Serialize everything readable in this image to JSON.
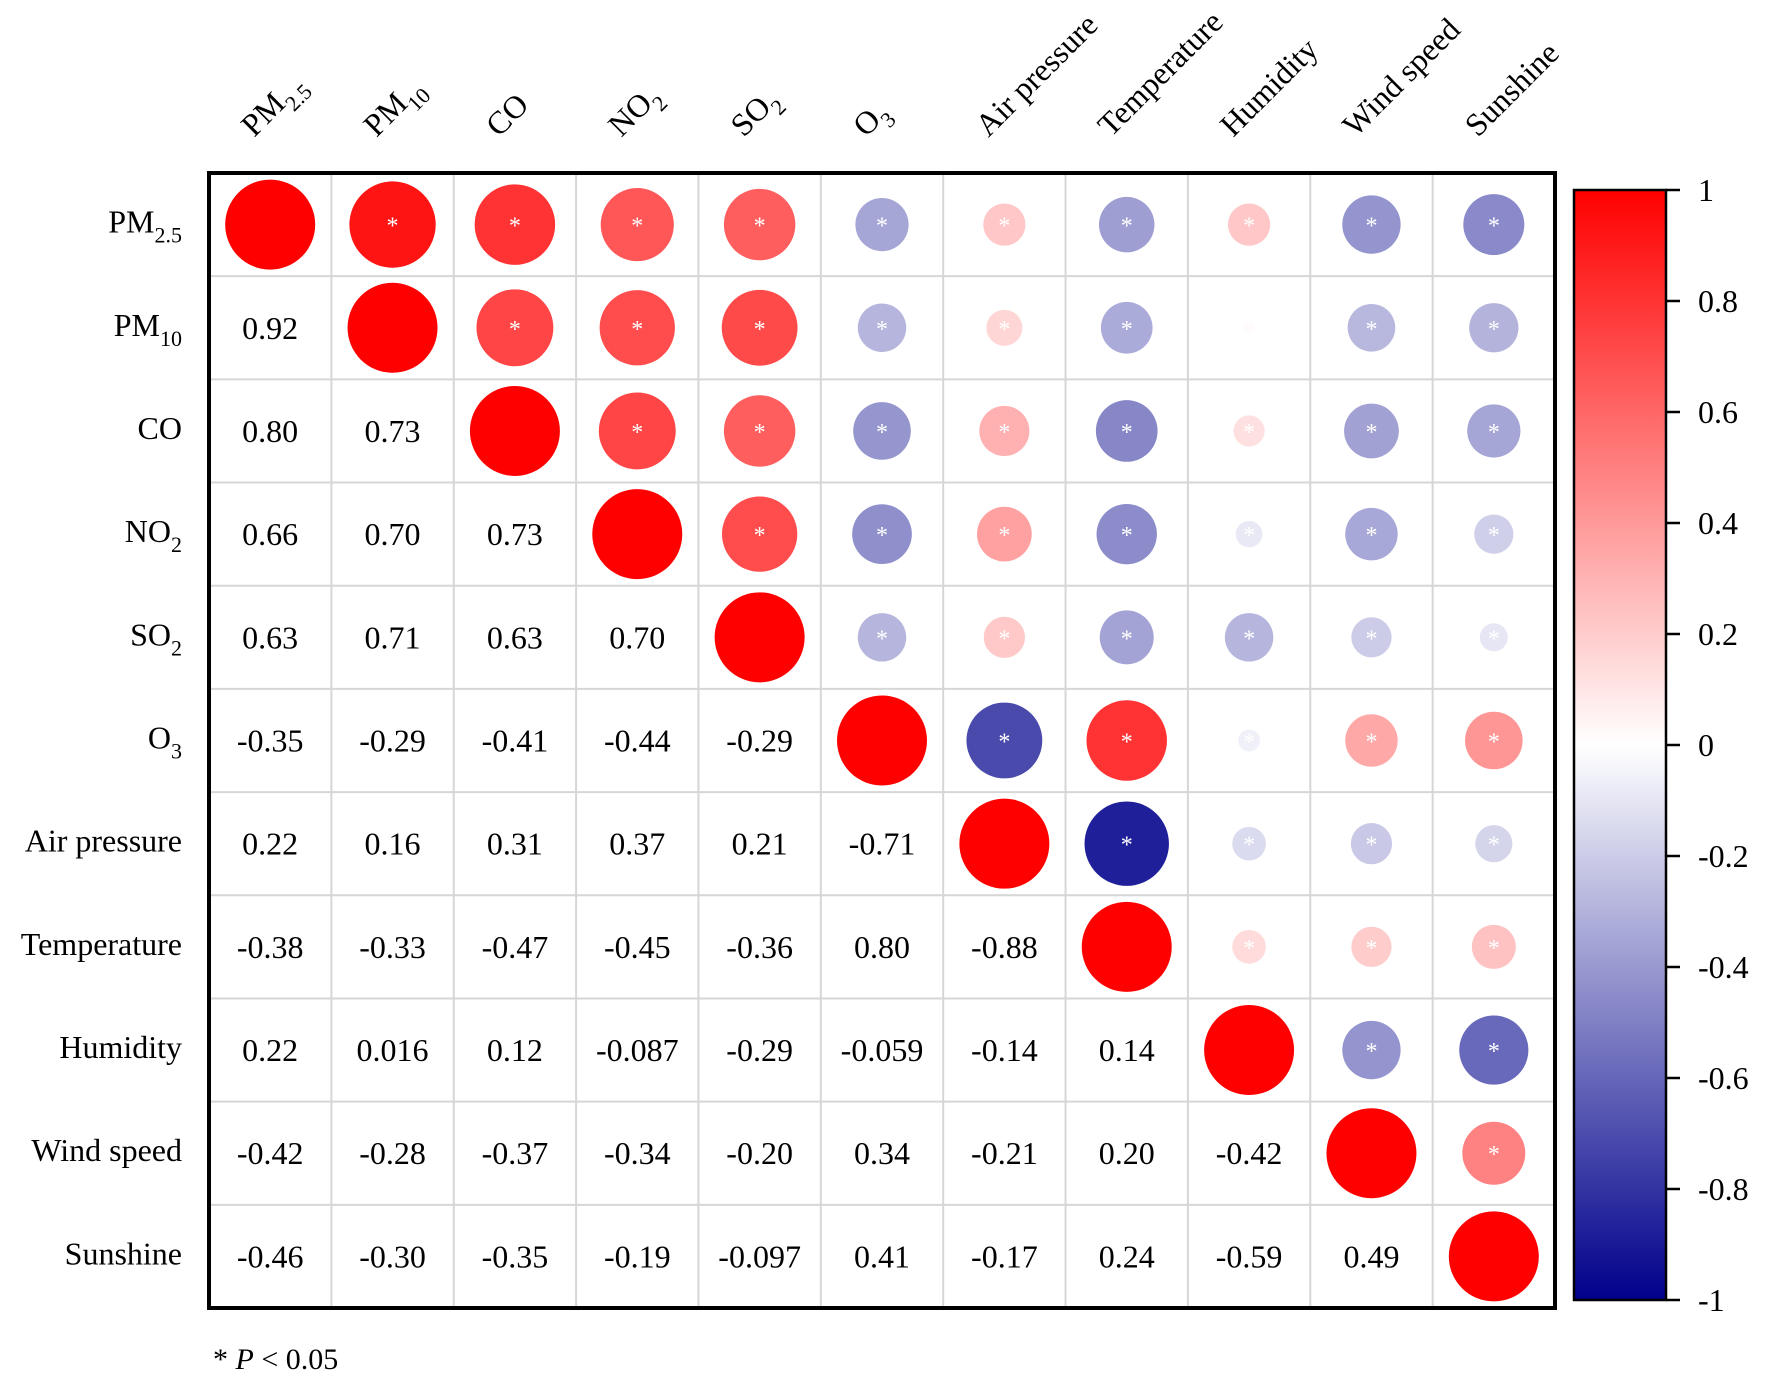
{
  "chart_data": {
    "type": "heatmap",
    "title": "",
    "variables": [
      {
        "label": "PM",
        "sub": "2.5"
      },
      {
        "label": "PM",
        "sub": "10"
      },
      {
        "label": "CO",
        "sub": ""
      },
      {
        "label": "NO",
        "sub": "2"
      },
      {
        "label": "SO",
        "sub": "2"
      },
      {
        "label": "O",
        "sub": "3"
      },
      {
        "label": "Air pressure",
        "sub": ""
      },
      {
        "label": "Temperature",
        "sub": ""
      },
      {
        "label": "Humidity",
        "sub": ""
      },
      {
        "label": "Wind speed",
        "sub": ""
      },
      {
        "label": "Sunshine",
        "sub": ""
      }
    ],
    "matrix": [
      [
        1,
        0.92,
        0.8,
        0.66,
        0.63,
        -0.35,
        0.22,
        -0.38,
        0.22,
        -0.42,
        -0.46
      ],
      [
        0.92,
        1,
        0.73,
        0.7,
        0.71,
        -0.29,
        0.16,
        -0.33,
        0.016,
        -0.28,
        -0.3
      ],
      [
        0.8,
        0.73,
        1,
        0.73,
        0.63,
        -0.41,
        0.31,
        -0.47,
        0.12,
        -0.37,
        -0.35
      ],
      [
        0.66,
        0.7,
        0.73,
        1,
        0.7,
        -0.44,
        0.37,
        -0.45,
        -0.087,
        -0.34,
        -0.19
      ],
      [
        0.63,
        0.71,
        0.63,
        0.7,
        1,
        -0.29,
        0.21,
        -0.36,
        -0.29,
        -0.2,
        -0.097
      ],
      [
        -0.35,
        -0.29,
        -0.41,
        -0.44,
        -0.29,
        1,
        -0.71,
        0.8,
        -0.059,
        0.34,
        0.41
      ],
      [
        0.22,
        0.16,
        0.31,
        0.37,
        0.21,
        -0.71,
        1,
        -0.88,
        -0.14,
        -0.21,
        -0.17
      ],
      [
        -0.38,
        -0.33,
        -0.47,
        -0.45,
        -0.36,
        0.8,
        -0.88,
        1,
        0.14,
        0.2,
        0.24
      ],
      [
        0.22,
        0.016,
        0.12,
        -0.087,
        -0.29,
        -0.059,
        -0.14,
        0.14,
        1,
        -0.42,
        -0.59
      ],
      [
        -0.42,
        -0.28,
        -0.37,
        -0.34,
        -0.2,
        0.34,
        -0.21,
        0.2,
        -0.42,
        1,
        0.49
      ],
      [
        -0.46,
        -0.3,
        -0.35,
        -0.19,
        -0.097,
        0.41,
        -0.17,
        0.24,
        -0.59,
        0.49,
        1
      ]
    ],
    "lower_labels": [
      [
        null,
        null,
        null,
        null,
        null,
        null,
        null,
        null,
        null,
        null,
        null
      ],
      [
        "0.92",
        null,
        null,
        null,
        null,
        null,
        null,
        null,
        null,
        null,
        null
      ],
      [
        "0.80",
        "0.73",
        null,
        null,
        null,
        null,
        null,
        null,
        null,
        null,
        null
      ],
      [
        "0.66",
        "0.70",
        "0.73",
        null,
        null,
        null,
        null,
        null,
        null,
        null,
        null
      ],
      [
        "0.63",
        "0.71",
        "0.63",
        "0.70",
        null,
        null,
        null,
        null,
        null,
        null,
        null
      ],
      [
        "-0.35",
        "-0.29",
        "-0.41",
        "-0.44",
        "-0.29",
        null,
        null,
        null,
        null,
        null,
        null
      ],
      [
        "0.22",
        "0.16",
        "0.31",
        "0.37",
        "0.21",
        "-0.71",
        null,
        null,
        null,
        null,
        null
      ],
      [
        "-0.38",
        "-0.33",
        "-0.47",
        "-0.45",
        "-0.36",
        "0.80",
        "-0.88",
        null,
        null,
        null,
        null
      ],
      [
        "0.22",
        "0.016",
        "0.12",
        "-0.087",
        "-0.29",
        "-0.059",
        "-0.14",
        "0.14",
        null,
        null,
        null
      ],
      [
        "-0.42",
        "-0.28",
        "-0.37",
        "-0.34",
        "-0.20",
        "0.34",
        "-0.21",
        "0.20",
        "-0.42",
        null,
        null
      ],
      [
        "-0.46",
        "-0.30",
        "-0.35",
        "-0.19",
        "-0.097",
        "0.41",
        "-0.17",
        "0.24",
        "-0.59",
        "0.49",
        null
      ]
    ],
    "significance_marker": "*",
    "significant_upper": [
      [
        false,
        true,
        true,
        true,
        true,
        true,
        true,
        true,
        true,
        true,
        true
      ],
      [
        false,
        false,
        true,
        true,
        true,
        true,
        true,
        true,
        false,
        true,
        true
      ],
      [
        false,
        false,
        false,
        true,
        true,
        true,
        true,
        true,
        true,
        true,
        true
      ],
      [
        false,
        false,
        false,
        false,
        true,
        true,
        true,
        true,
        true,
        true,
        true
      ],
      [
        false,
        false,
        false,
        false,
        false,
        true,
        true,
        true,
        true,
        true,
        true
      ],
      [
        false,
        false,
        false,
        false,
        false,
        false,
        true,
        true,
        true,
        true,
        true
      ],
      [
        false,
        false,
        false,
        false,
        false,
        false,
        false,
        true,
        true,
        true,
        true
      ],
      [
        false,
        false,
        false,
        false,
        false,
        false,
        false,
        false,
        true,
        true,
        true
      ],
      [
        false,
        false,
        false,
        false,
        false,
        false,
        false,
        false,
        false,
        true,
        true
      ],
      [
        false,
        false,
        false,
        false,
        false,
        false,
        false,
        false,
        false,
        false,
        true
      ],
      [
        false,
        false,
        false,
        false,
        false,
        false,
        false,
        false,
        false,
        false,
        false
      ]
    ],
    "colorbar": {
      "range": [
        -1,
        1
      ],
      "ticks": [
        "1",
        "0.8",
        "0.6",
        "0.4",
        "0.2",
        "0",
        "-0.2",
        "-0.4",
        "-0.6",
        "-0.8",
        "-1"
      ],
      "color_negative": "#00008B",
      "color_zero": "#FFFFFF",
      "color_positive": "#FF0000"
    },
    "footnote": {
      "marker": "*",
      "p_symbol": "P",
      "text": "< 0.05"
    }
  }
}
